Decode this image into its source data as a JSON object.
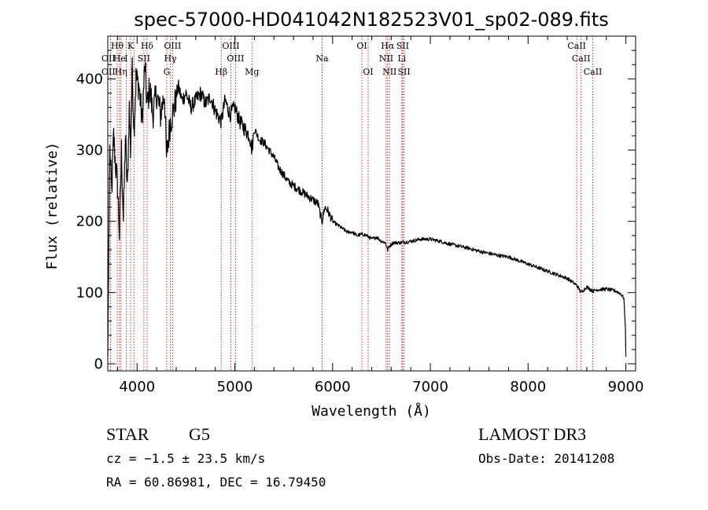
{
  "chart_data": {
    "type": "line",
    "title": "spec-57000-HD041042N182523V01_sp02-089.fits",
    "xlabel": "Wavelength (Å)",
    "ylabel": "Flux (relative)",
    "xlim": [
      3700,
      9100
    ],
    "ylim": [
      -10,
      460
    ],
    "xticks": [
      4000,
      5000,
      6000,
      7000,
      8000,
      9000
    ],
    "yticks": [
      0,
      100,
      200,
      300,
      400
    ],
    "line_color": "#000000",
    "marker_color": "#c83232",
    "series": [
      {
        "name": "spectrum",
        "x": [
          3700,
          3720,
          3740,
          3760,
          3780,
          3800,
          3820,
          3840,
          3860,
          3880,
          3900,
          3920,
          3933,
          3950,
          3968,
          3990,
          4020,
          4050,
          4080,
          4102,
          4130,
          4160,
          4200,
          4240,
          4280,
          4300,
          4340,
          4380,
          4420,
          4460,
          4500,
          4550,
          4600,
          4650,
          4700,
          4750,
          4800,
          4861,
          4900,
          4950,
          5000,
          5050,
          5100,
          5150,
          5175,
          5200,
          5250,
          5300,
          5350,
          5400,
          5450,
          5500,
          5550,
          5600,
          5650,
          5700,
          5750,
          5800,
          5850,
          5890,
          5893,
          5920,
          5950,
          6000,
          6050,
          6100,
          6150,
          6200,
          6250,
          6300,
          6350,
          6400,
          6450,
          6500,
          6540,
          6563,
          6580,
          6620,
          6700,
          6800,
          6900,
          7000,
          7100,
          7200,
          7300,
          7400,
          7500,
          7600,
          7700,
          7800,
          7900,
          8000,
          8100,
          8200,
          8300,
          8400,
          8500,
          8542,
          8600,
          8662,
          8700,
          8800,
          8900,
          8950,
          8980,
          8995,
          9000
        ],
        "y": [
          10,
          300,
          240,
          320,
          280,
          250,
          180,
          300,
          200,
          320,
          240,
          360,
          300,
          410,
          330,
          400,
          390,
          340,
          420,
          360,
          390,
          350,
          380,
          350,
          380,
          290,
          340,
          360,
          390,
          370,
          380,
          360,
          370,
          380,
          365,
          375,
          355,
          340,
          370,
          350,
          360,
          340,
          330,
          320,
          300,
          330,
          315,
          310,
          300,
          290,
          275,
          265,
          255,
          250,
          245,
          240,
          235,
          230,
          225,
          200,
          200,
          220,
          215,
          200,
          195,
          190,
          185,
          185,
          180,
          182,
          180,
          175,
          178,
          172,
          170,
          160,
          165,
          170,
          170,
          172,
          175,
          175,
          172,
          168,
          165,
          162,
          158,
          155,
          152,
          150,
          145,
          140,
          135,
          130,
          125,
          120,
          110,
          100,
          108,
          102,
          104,
          105,
          102,
          98,
          92,
          50,
          10
        ]
      }
    ],
    "lines_top": [
      {
        "label": "Hθ",
        "x": 3797
      },
      {
        "label": "K",
        "x": 3934
      },
      {
        "label": "Hδ",
        "x": 4102
      },
      {
        "label": "OIII",
        "x": 4363
      },
      {
        "label": "OIII",
        "x": 4959
      },
      {
        "label": "OI",
        "x": 6300
      },
      {
        "label": "Hα",
        "x": 6563
      },
      {
        "label": "SII",
        "x": 6717
      },
      {
        "label": "CaII",
        "x": 8498
      }
    ],
    "lines_middle": [
      {
        "label": "OII",
        "x": 3727
      },
      {
        "label": "He",
        "x": 3820
      },
      {
        "label": "I",
        "x": 3889
      },
      {
        "label": "SII",
        "x": 4069
      },
      {
        "label": "Hγ",
        "x": 4340
      },
      {
        "label": "OIII",
        "x": 5007
      },
      {
        "label": "Na",
        "x": 5893
      },
      {
        "label": "NII",
        "x": 6548
      },
      {
        "label": "Li",
        "x": 6708
      },
      {
        "label": "CaII",
        "x": 8542
      }
    ],
    "lines_bottom": [
      {
        "label": "OII",
        "x": 3729
      },
      {
        "label": "Hη",
        "x": 3835
      },
      {
        "label": "H",
        "x": 3968
      },
      {
        "label": "G",
        "x": 4304
      },
      {
        "label": "Hβ",
        "x": 4861
      },
      {
        "label": "Mg",
        "x": 5175
      },
      {
        "label": "OI",
        "x": 6363
      },
      {
        "label": "NII",
        "x": 6583
      },
      {
        "label": "SII",
        "x": 6731
      },
      {
        "label": "CaII",
        "x": 8662
      }
    ]
  },
  "info": {
    "class_label": "STAR",
    "subclass_label": "G5",
    "survey_label": "LAMOST DR3",
    "cz_line": "cz = −1.5 ± 23.5 km/s",
    "obs_date_line": "Obs-Date: 20141208",
    "radec_line": "RA =  60.86981, DEC =  16.79450"
  }
}
